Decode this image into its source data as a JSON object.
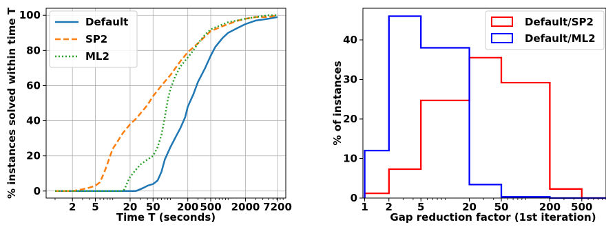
{
  "chart_data": [
    {
      "type": "line",
      "title": "",
      "xlabel": "Time T (seconds)",
      "ylabel": "% instances solved within time T",
      "xscale": "log",
      "xlim": [
        0.7,
        10000
      ],
      "ylim": [
        -4,
        104
      ],
      "xticks": [
        2,
        5,
        20,
        50,
        200,
        500,
        2000,
        7200
      ],
      "xtick_labels": [
        "2",
        "5",
        "20",
        "50",
        "200",
        "500",
        "2000",
        "7200"
      ],
      "yticks": [
        0,
        20,
        40,
        60,
        80,
        100
      ],
      "ytick_labels": [
        "0",
        "20",
        "40",
        "60",
        "80",
        "100"
      ],
      "grid": true,
      "legend_position": "top-left",
      "series": [
        {
          "name": "Default",
          "color": "#1f77b4",
          "dash": "solid",
          "x": [
            1,
            5,
            10,
            20,
            25,
            30,
            35,
            40,
            50,
            55,
            60,
            70,
            80,
            100,
            120,
            150,
            180,
            200,
            250,
            300,
            400,
            500,
            600,
            800,
            1000,
            1500,
            2000,
            3000,
            5000,
            7200
          ],
          "y": [
            0,
            0,
            0,
            0,
            0,
            1,
            2,
            3,
            4,
            5,
            6,
            11,
            18,
            25,
            30,
            36,
            42,
            48,
            55,
            62,
            70,
            77,
            82,
            87,
            90,
            93,
            95,
            97,
            98,
            99
          ]
        },
        {
          "name": "SP2",
          "color": "#ff7f0e",
          "dash": "dashed",
          "x": [
            1,
            2,
            3,
            4,
            5,
            6,
            7,
            8,
            9,
            10,
            12,
            15,
            20,
            25,
            30,
            40,
            50,
            70,
            100,
            150,
            200,
            300,
            400,
            500,
            700,
            1000,
            1500,
            2000,
            3000,
            5000,
            7200
          ],
          "y": [
            0,
            0,
            1,
            2,
            3,
            5,
            10,
            15,
            20,
            24,
            28,
            33,
            38,
            41,
            44,
            49,
            54,
            60,
            66,
            74,
            79,
            84,
            88,
            91,
            93,
            95,
            97,
            98,
            99,
            99,
            100
          ]
        },
        {
          "name": "ML2",
          "color": "#2ca02c",
          "dash": "dotted",
          "x": [
            1,
            5,
            10,
            15,
            16,
            17,
            18,
            20,
            25,
            30,
            40,
            50,
            60,
            70,
            80,
            90,
            100,
            120,
            150,
            200,
            250,
            300,
            400,
            500,
            700,
            1000,
            2000,
            3000,
            5000,
            7200
          ],
          "y": [
            0,
            0,
            0,
            0,
            1,
            3,
            5,
            8,
            12,
            15,
            18,
            20,
            25,
            32,
            42,
            52,
            58,
            65,
            71,
            76,
            80,
            84,
            89,
            92,
            94,
            96,
            98,
            99,
            100,
            100
          ]
        }
      ]
    },
    {
      "type": "histogram",
      "title": "",
      "xlabel": "Gap reduction factor (1st iteration)",
      "ylabel": "% of instances",
      "xscale": "log",
      "xlim": [
        0.95,
        1000
      ],
      "ylim": [
        0,
        48
      ],
      "xticks": [
        1,
        2,
        5,
        20,
        50,
        200,
        500
      ],
      "xtick_labels": [
        "1",
        "2",
        "5",
        "20",
        "50",
        "200",
        "500"
      ],
      "yticks": [
        0,
        10,
        20,
        30,
        40
      ],
      "ytick_labels": [
        "0",
        "10",
        "20",
        "30",
        "40"
      ],
      "bin_edges": [
        1,
        2,
        5,
        20,
        50,
        200,
        500,
        1000
      ],
      "grid": false,
      "legend_position": "top-right",
      "series": [
        {
          "name": "Default/SP2",
          "color": "#ff0000",
          "values": [
            1.2,
            7.3,
            24.7,
            35.5,
            29.2,
            2.3,
            0
          ]
        },
        {
          "name": "Default/ML2",
          "color": "#0000ff",
          "values": [
            12,
            46,
            38,
            3.4,
            0.3,
            0,
            0
          ]
        }
      ]
    }
  ]
}
